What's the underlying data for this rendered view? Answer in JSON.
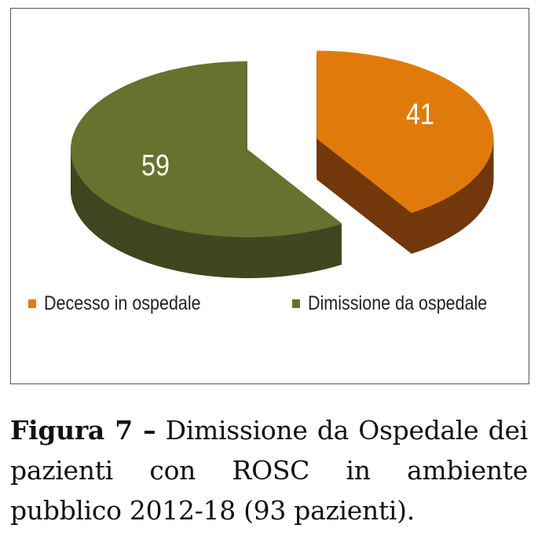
{
  "chart_data": {
    "type": "pie",
    "style": "3d-exploded",
    "categories": [
      "Decesso in ospedale",
      "Dimissione da ospedale"
    ],
    "values": [
      41,
      59
    ],
    "data_labels": [
      "41",
      "59"
    ],
    "colors": [
      "#e07b0b",
      "#66722d"
    ],
    "side_colors": [
      "#73380c",
      "#3f4720"
    ],
    "legend_position": "bottom"
  },
  "caption": {
    "label": "Figura 7 –",
    "text": "Dimissione da Ospedale dei pazienti con ROSC in ambiente pubblico 2012-18 (93 pazienti)."
  }
}
